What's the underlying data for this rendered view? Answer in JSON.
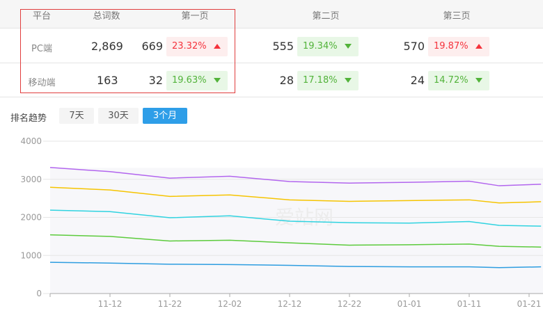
{
  "table": {
    "headers": [
      "平台",
      "总词数",
      "第一页",
      "第二页",
      "第三页"
    ],
    "rows": [
      {
        "platform": "PC端",
        "total": "2,869",
        "p1": "669",
        "p1_pct": "23.32%",
        "p1_dir": "up",
        "p2": "555",
        "p2_pct": "19.34%",
        "p2_dir": "down",
        "p3": "570",
        "p3_pct": "19.87%",
        "p3_dir": "up"
      },
      {
        "platform": "移动端",
        "total": "163",
        "p1": "32",
        "p1_pct": "19.63%",
        "p1_dir": "down",
        "p2": "28",
        "p2_pct": "17.18%",
        "p2_dir": "down",
        "p3": "24",
        "p3_pct": "14.72%",
        "p3_dir": "down"
      }
    ]
  },
  "trend": {
    "label": "排名趋势",
    "ranges": [
      {
        "label": "7天",
        "active": false
      },
      {
        "label": "30天",
        "active": false
      },
      {
        "label": "3个月",
        "active": true
      }
    ]
  },
  "watermark": "爱站网",
  "chart_data": {
    "type": "line",
    "ylim": [
      0,
      4000
    ],
    "yticks": [
      "0",
      "1000",
      "2000",
      "3000",
      "4000"
    ],
    "xticks": [
      "11-12",
      "11-22",
      "12-02",
      "12-12",
      "12-22",
      "01-01",
      "01-11",
      "01-21"
    ],
    "x": [
      "11-02",
      "11-12",
      "11-22",
      "12-02",
      "12-12",
      "12-22",
      "01-01",
      "01-11",
      "01-16",
      "01-23"
    ],
    "grid": true,
    "series": [
      {
        "color": "#b265ee",
        "values": [
          3310,
          3200,
          3030,
          3080,
          2940,
          2900,
          2920,
          2950,
          2830,
          2870
        ]
      },
      {
        "color": "#f6c400",
        "values": [
          2790,
          2720,
          2550,
          2590,
          2460,
          2420,
          2440,
          2460,
          2380,
          2410
        ]
      },
      {
        "color": "#2fd3e0",
        "values": [
          2190,
          2150,
          1990,
          2040,
          1900,
          1860,
          1850,
          1890,
          1790,
          1770
        ]
      },
      {
        "color": "#5ccb3c",
        "values": [
          1540,
          1500,
          1380,
          1400,
          1330,
          1270,
          1280,
          1300,
          1240,
          1220
        ]
      },
      {
        "color": "#2d9de0",
        "values": [
          820,
          800,
          770,
          760,
          740,
          710,
          700,
          700,
          680,
          700
        ]
      }
    ]
  }
}
